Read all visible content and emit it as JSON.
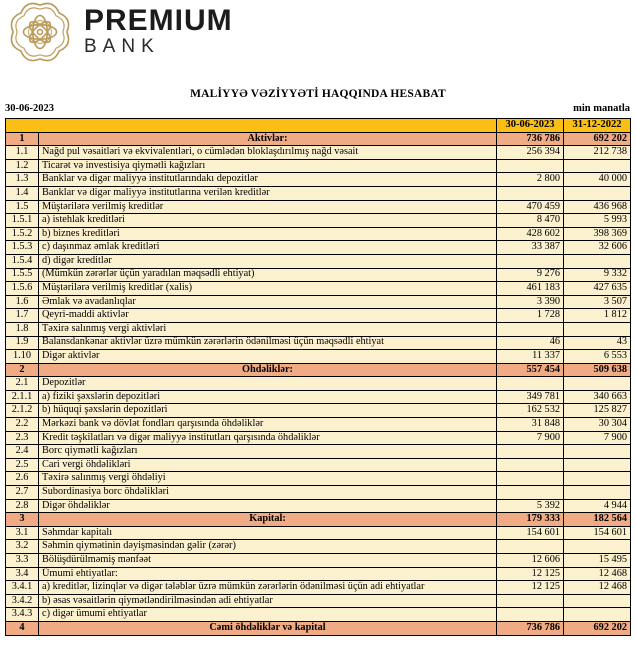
{
  "brand": {
    "name": "PREMIUM",
    "sub": "BANK"
  },
  "icons": {
    "emblem": "bank-emblem-knot-icon"
  },
  "colors": {
    "header_orange": "#FBBE14",
    "section_salmon": "#F1AB84",
    "row_cream": "#FBF1CF",
    "logo_gold": "#BB9C5C"
  },
  "report": {
    "title": "MALİYYƏ VƏZİYYƏTİ HAQQINDA HESABAT",
    "date": "30-06-2023",
    "unit": "min manatla"
  },
  "table": {
    "col_current": "30-06-2023",
    "col_previous": "31-12-2022",
    "rows": [
      {
        "num": "1",
        "label": "Aktivlər:",
        "v1": "736 786",
        "v2": "692 202",
        "type": "section"
      },
      {
        "num": "1.1",
        "label": "Nağd pul vəsaitləri və  ekvivalentləri, o cümlədən bloklaşdırılmış nağd vəsait",
        "v1": "256 394",
        "v2": "212 738",
        "type": "data"
      },
      {
        "num": "1.2",
        "label": "Ticarət və investisiya qiymətli kağızları",
        "v1": "",
        "v2": "",
        "type": "data"
      },
      {
        "num": "1.3",
        "label": "Banklar və digər maliyyə institutlarındakı depozitlər",
        "v1": "2 800",
        "v2": "40 000",
        "type": "data"
      },
      {
        "num": "1.4",
        "label": "Banklar və digər maliyyə institutlarına verilən kreditlər",
        "v1": "",
        "v2": "",
        "type": "data"
      },
      {
        "num": "1.5",
        "label": "Müştərilərə verilmiş kreditlər",
        "v1": "470 459",
        "v2": "436 968",
        "type": "data"
      },
      {
        "num": "1.5.1",
        "label": "a) istehlak kreditləri",
        "v1": "8 470",
        "v2": "5 993",
        "type": "data"
      },
      {
        "num": "1.5.2",
        "label": "b) biznes kreditləri",
        "v1": "428 602",
        "v2": "398 369",
        "type": "data"
      },
      {
        "num": "1.5.3",
        "label": "c) daşınmaz əmlak kreditləri",
        "v1": "33 387",
        "v2": "32 606",
        "type": "data"
      },
      {
        "num": "1.5.4",
        "label": "d) digər kreditlər",
        "v1": "",
        "v2": "",
        "type": "data"
      },
      {
        "num": "1.5.5",
        "label": "(Mümkün zərərlər üçün yaradılan məqsədli ehtiyat)",
        "v1": "9 276",
        "v2": "9 332",
        "type": "data"
      },
      {
        "num": "1.5.6",
        "label": "Müştərilərə verilmiş kreditlər (xalis)",
        "v1": "461 183",
        "v2": "427 635",
        "type": "data"
      },
      {
        "num": "1.6",
        "label": "Əmlak və avadanlıqlar",
        "v1": "3 390",
        "v2": "3 507",
        "type": "data"
      },
      {
        "num": "1.7",
        "label": "Qeyri-maddi aktivlər",
        "v1": "1 728",
        "v2": "1 812",
        "type": "data"
      },
      {
        "num": "1.8",
        "label": "Təxirə salınmış vergi aktivləri",
        "v1": "",
        "v2": "",
        "type": "data"
      },
      {
        "num": "1.9",
        "label": "Balansdankənar aktivlər üzrə mümkün zərərlərin ödənilməsi üçün məqsədli ehtiyat",
        "v1": "46",
        "v2": "43",
        "type": "data"
      },
      {
        "num": "1.10",
        "label": "Digər aktivlər",
        "v1": "11 337",
        "v2": "6 553",
        "type": "data"
      },
      {
        "num": "2",
        "label": "Öhdəliklər:",
        "v1": "557 454",
        "v2": "509 638",
        "type": "section"
      },
      {
        "num": "2.1",
        "label": "Depozitlər",
        "v1": "",
        "v2": "",
        "type": "data"
      },
      {
        "num": "2.1.1",
        "label": "a) fiziki şəxslərin depozitləri",
        "v1": "349 781",
        "v2": "340 663",
        "type": "data"
      },
      {
        "num": "2.1.2",
        "label": "b) hüquqi şəxslərin depozitləri",
        "v1": "162 532",
        "v2": "125 827",
        "type": "data"
      },
      {
        "num": "2.2",
        "label": "Mərkəzi bank və dövlət fondları qarşısında öhdəliklər",
        "v1": "31 848",
        "v2": "30 304",
        "type": "data"
      },
      {
        "num": "2.3",
        "label": "Kredit təşkilatları və digər maliyyə institutları qarşısında öhdəliklər",
        "v1": "7 900",
        "v2": "7 900",
        "type": "data"
      },
      {
        "num": "2.4",
        "label": "Borc qiymətli kağızları",
        "v1": "",
        "v2": "",
        "type": "data"
      },
      {
        "num": "2.5",
        "label": "Cari vergi öhdəlikləri",
        "v1": "",
        "v2": "",
        "type": "data"
      },
      {
        "num": "2.6",
        "label": "Təxirə salınmış vergi öhdəliyi",
        "v1": "",
        "v2": "",
        "type": "data"
      },
      {
        "num": "2.7",
        "label": "Subordinasiya borc öhdəlikləri",
        "v1": "",
        "v2": "",
        "type": "data"
      },
      {
        "num": "2.8",
        "label": "Digər öhdəliklər",
        "v1": "5 392",
        "v2": "4 944",
        "type": "data"
      },
      {
        "num": "3",
        "label": "Kapital:",
        "v1": "179 333",
        "v2": "182 564",
        "type": "section"
      },
      {
        "num": "3.1",
        "label": "Səhmdar kapitalı",
        "v1": "154 601",
        "v2": "154 601",
        "type": "data"
      },
      {
        "num": "3.2",
        "label": "Səhmin qiymətinin dəyişməsindən gəlir (zərər)",
        "v1": "",
        "v2": "",
        "type": "data"
      },
      {
        "num": "3.3",
        "label": "Bölüşdürülməmiş mənfəət",
        "v1": "12 606",
        "v2": "15 495",
        "type": "data"
      },
      {
        "num": "3.4",
        "label": "Ümumi ehtiyatlar:",
        "v1": "12 125",
        "v2": "12 468",
        "type": "data"
      },
      {
        "num": "3.4.1",
        "label": "a) kreditlər, lizinqlər və digər tələblər üzrə mümkün zərərlərin ödənilməsi üçün adi ehtiyatlar",
        "v1": "12 125",
        "v2": "12 468",
        "type": "data"
      },
      {
        "num": "3.4.2",
        "label": "b) əsas vəsaitlərin qiymətləndirilməsindən adi ehtiyatlar",
        "v1": "",
        "v2": "",
        "type": "data"
      },
      {
        "num": "3.4.3",
        "label": "c) digər ümumi ehtiyatlar",
        "v1": "",
        "v2": "",
        "type": "data"
      },
      {
        "num": "4",
        "label": "Cəmi öhdəliklər və kapital",
        "v1": "736 786",
        "v2": "692 202",
        "type": "section"
      }
    ]
  }
}
